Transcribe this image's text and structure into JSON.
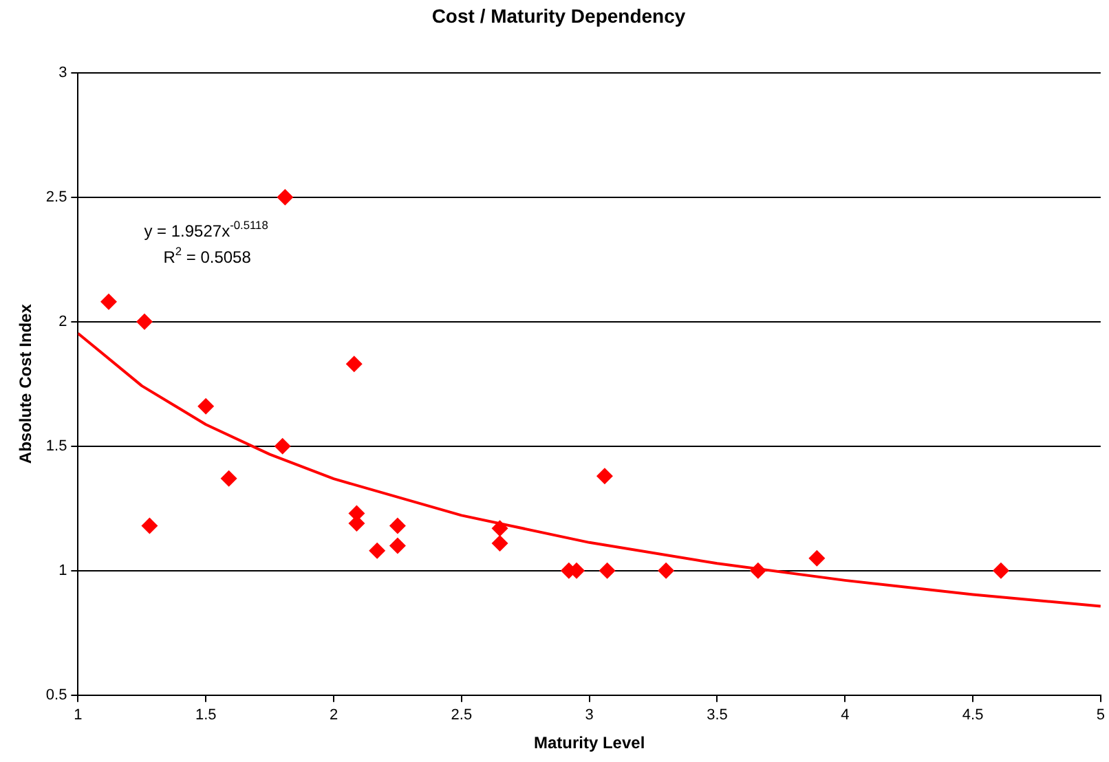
{
  "chart_data": {
    "type": "scatter",
    "title": "Cost / Maturity Dependency",
    "xlabel": "Maturity Level",
    "ylabel": "Absolute Cost Index",
    "xlim": [
      1,
      5
    ],
    "xticks": [
      1,
      1.5,
      2,
      2.5,
      3,
      3.5,
      4,
      4.5,
      5
    ],
    "ylim": [
      0.5,
      3
    ],
    "yticks": [
      0.5,
      1,
      1.5,
      2,
      2.5,
      3
    ],
    "grid": "y",
    "legend": false,
    "marker": "diamond",
    "annotations": [
      "y = 1.9527x$^{-0.5118}$",
      "R$^{2}$ = 0.5058"
    ],
    "series": [
      {
        "color": "#ff0000",
        "x": [
          1.12,
          1.26,
          1.28,
          1.5,
          1.59,
          1.8,
          1.81,
          2.08,
          2.09,
          2.09,
          2.17,
          2.25,
          2.25,
          2.65,
          2.65,
          2.92,
          2.95,
          3.06,
          3.07,
          3.3,
          3.66,
          3.89,
          4.61
        ],
        "values": [
          2.08,
          2.0,
          1.18,
          1.66,
          1.37,
          1.5,
          2.5,
          1.83,
          1.23,
          1.19,
          1.08,
          1.18,
          1.1,
          1.17,
          1.11,
          1.0,
          1.0,
          1.38,
          1.0,
          1.0,
          1.0,
          1.05,
          1.0
        ]
      },
      {
        "type": "line",
        "color": "#ff0000",
        "marker": "none",
        "x": [
          1,
          1.25,
          1.5,
          1.75,
          2,
          2.5,
          3,
          3.5,
          4,
          4.5,
          5
        ],
        "values": [
          1.953,
          1.742,
          1.587,
          1.467,
          1.369,
          1.222,
          1.113,
          1.029,
          0.961,
          0.904,
          0.857
        ]
      }
    ]
  }
}
